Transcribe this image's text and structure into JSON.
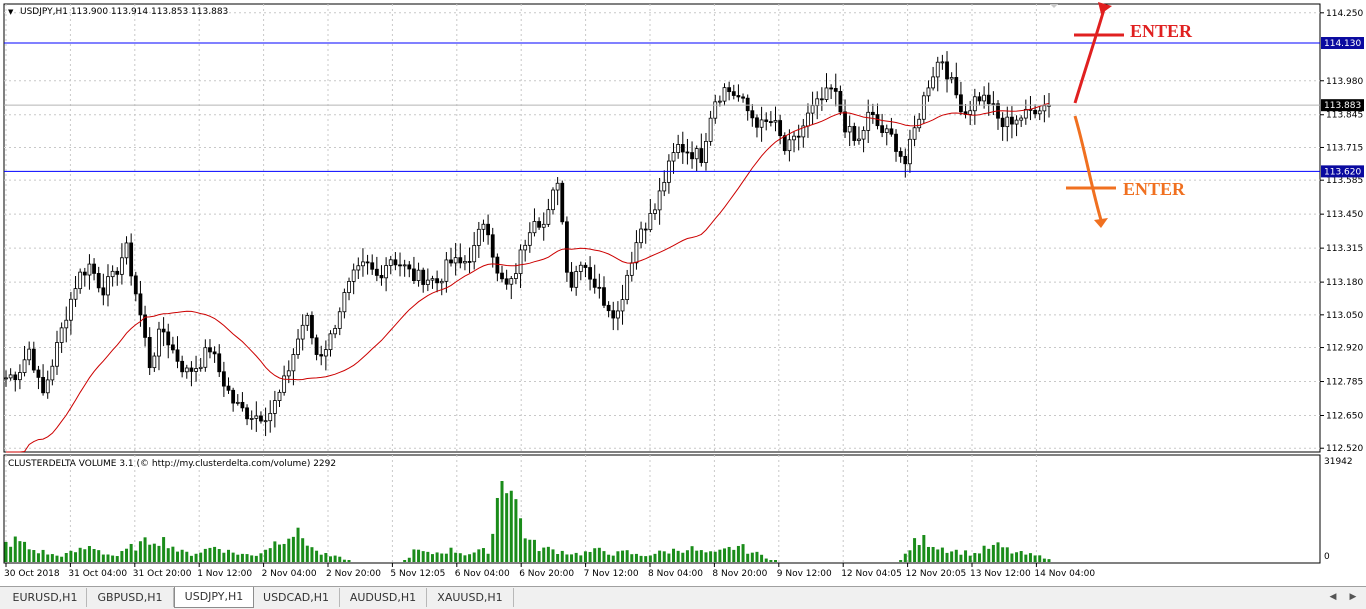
{
  "chart_data": [
    {
      "type": "candlestick",
      "symbol_header": "USDJPY,H1  113.900 113.914 113.853 113.883",
      "ohlc": {
        "open": 113.9,
        "high": 113.914,
        "low": 113.853,
        "close": 113.883
      },
      "y_ticks": [
        "114.250",
        "113.980",
        "113.845",
        "113.715",
        "113.585",
        "113.450",
        "113.315",
        "113.180",
        "113.050",
        "112.920",
        "112.785",
        "112.650",
        "112.520"
      ],
      "ylim": [
        112.505,
        114.285
      ],
      "x_ticks": [
        "30 Oct 2018",
        "31 Oct 04:00",
        "31 Oct 20:00",
        "1 Nov 12:00",
        "2 Nov 04:00",
        "2 Nov 20:00",
        "5 Nov 12:05",
        "6 Nov 04:00",
        "6 Nov 20:00",
        "7 Nov 12:00",
        "8 Nov 04:00",
        "8 Nov 20:00",
        "9 Nov 12:00",
        "12 Nov 04:05",
        "12 Nov 20:05",
        "13 Nov 12:00",
        "14 Nov 04:00"
      ],
      "bar_count": 226,
      "anchor_closes": [
        112.8,
        112.82,
        112.92,
        112.72,
        112.88,
        113.05,
        113.2,
        113.25,
        113.15,
        113.2,
        113.32,
        113.1,
        112.85,
        113.0,
        112.9,
        112.82,
        112.85,
        112.92,
        112.8,
        112.7,
        112.66,
        112.65,
        112.66,
        112.75,
        112.9,
        113.05,
        112.88,
        112.95,
        113.1,
        113.2,
        113.25,
        113.2,
        113.28,
        113.25,
        113.2,
        113.2,
        113.18,
        113.26,
        113.25,
        113.3,
        113.45,
        113.2,
        113.15,
        113.3,
        113.45,
        113.4,
        113.6,
        113.15,
        113.28,
        113.18,
        113.1,
        113.05,
        113.25,
        113.4,
        113.45,
        113.6,
        113.72,
        113.7,
        113.68,
        113.9,
        113.95,
        113.92,
        113.85,
        113.8,
        113.82,
        113.7,
        113.75,
        113.85,
        113.9,
        113.95,
        113.8,
        113.72,
        113.85,
        113.78,
        113.75,
        113.65,
        113.82,
        113.98,
        114.08,
        113.95,
        113.85,
        113.92,
        113.9,
        113.8,
        113.83,
        113.84,
        113.88,
        113.883
      ],
      "levels": [
        {
          "label": "114.130",
          "value": 114.13
        },
        {
          "label": "113.883",
          "value": 113.883
        },
        {
          "label": "113.620",
          "value": 113.62
        }
      ],
      "moving_average": "red line trailing below price",
      "annotations": [
        {
          "text": "ENTER",
          "direction": "up",
          "color": "#e02020"
        },
        {
          "text": "ENTER",
          "direction": "down",
          "color": "#f07020"
        }
      ]
    },
    {
      "type": "bar",
      "title": "CLUSTERDELTA VOLUME 3.1 (© http://my.clusterdelta.com/volume) 2292",
      "y_ticks": [
        "31942",
        "0"
      ],
      "ylim": [
        0,
        31942
      ],
      "color": "#1a8c1a",
      "volume_profile": [
        0.18,
        0.22,
        0.12,
        0.1,
        0.06,
        0.08,
        0.12,
        0.16,
        0.08,
        0.06,
        0.14,
        0.18,
        0.24,
        0.2,
        0.1,
        0.08,
        0.12,
        0.16,
        0.1,
        0.08,
        0.06,
        0.14,
        0.22,
        0.3,
        0.24,
        0.1,
        0.06,
        0.04,
        0.0,
        0.0,
        0.0,
        0.0,
        0.0,
        0.12,
        0.08,
        0.1,
        0.12,
        0.08,
        0.1,
        0.12,
        1.0,
        0.6,
        0.22,
        0.14,
        0.12,
        0.1,
        0.08,
        0.1,
        0.12,
        0.08,
        0.1,
        0.06,
        0.08,
        0.1,
        0.12,
        0.14,
        0.1,
        0.08,
        0.12,
        0.16,
        0.1,
        0.06,
        0.0,
        0.0,
        0.0,
        0.0,
        0.0,
        0.0,
        0.0,
        0.0,
        0.0,
        0.0,
        0.0,
        0.18,
        0.22,
        0.16,
        0.12,
        0.1,
        0.08,
        0.14,
        0.16,
        0.1,
        0.08,
        0.06,
        0.04
      ],
      "series_length": 226
    }
  ],
  "tabs": [
    {
      "label": "EURUSD,H1"
    },
    {
      "label": "GBPUSD,H1"
    },
    {
      "label": "USDJPY,H1"
    },
    {
      "label": "USDCAD,H1"
    },
    {
      "label": "AUDUSD,H1"
    },
    {
      "label": "XAUUSD,H1"
    }
  ],
  "active_tab": "USDJPY,H1",
  "colors": {
    "price_line": "#0000ff",
    "ma_line": "#cc0000",
    "candle": "#000000",
    "volume": "#1a8c1a",
    "grid": "#c8c8c8",
    "axis_label_bg": "#0a0aa0"
  }
}
